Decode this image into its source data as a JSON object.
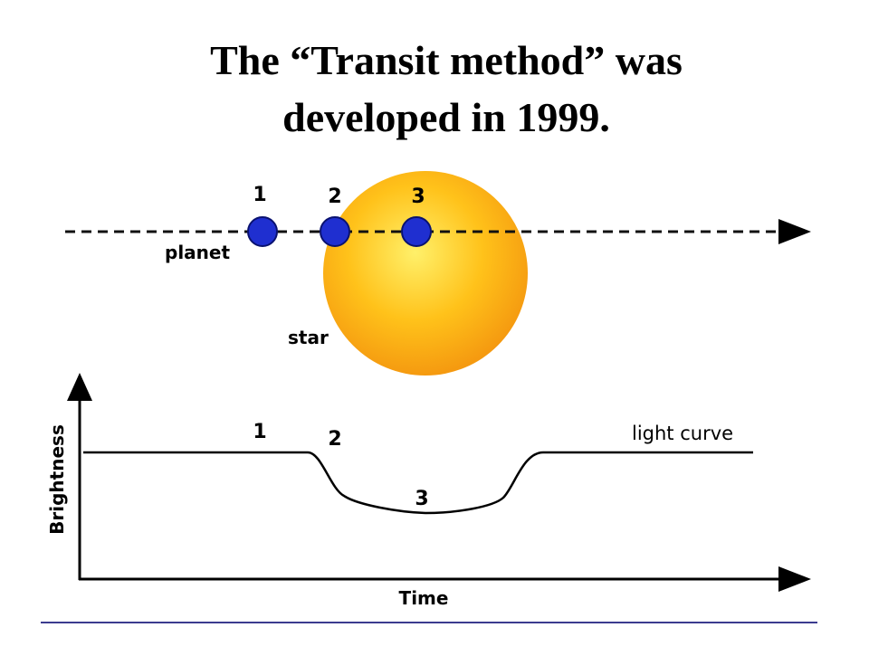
{
  "title": {
    "lines": [
      "The “Transit method” was",
      "developed in 1999."
    ]
  },
  "diagram": {
    "positions": [
      "1",
      "2",
      "3"
    ],
    "planet_label": "planet",
    "star_label": "star",
    "curve_points": [
      "1",
      "2",
      "3"
    ],
    "curve_label": "light curve",
    "y_axis_label": "Brightness",
    "x_axis_label": "Time"
  }
}
